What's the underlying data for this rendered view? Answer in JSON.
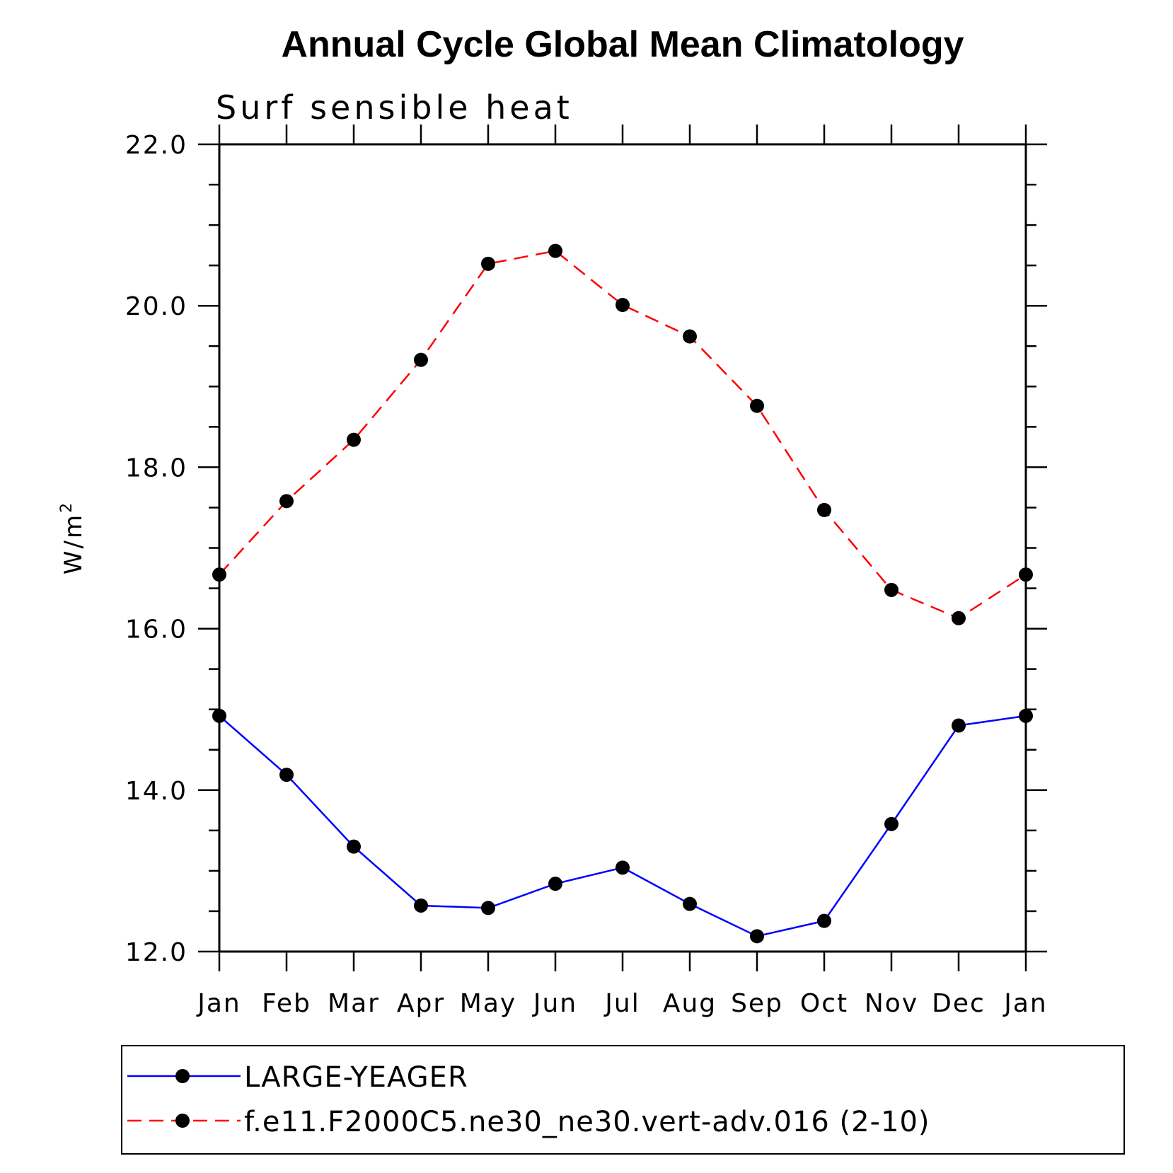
{
  "chart_data": {
    "type": "line",
    "title": "Annual Cycle Global Mean Climatology",
    "subtitle": "Surf sensible heat",
    "ylabel": "W/m",
    "ylabel_superscript": "2",
    "ylim": [
      12.0,
      22.0
    ],
    "yticks": [
      "12.0",
      "14.0",
      "16.0",
      "18.0",
      "20.0",
      "22.0"
    ],
    "categories": [
      "Jan",
      "Feb",
      "Mar",
      "Apr",
      "May",
      "Jun",
      "Jul",
      "Aug",
      "Sep",
      "Oct",
      "Nov",
      "Dec",
      "Jan"
    ],
    "grid": false,
    "legend_position": "bottom",
    "series": [
      {
        "name": "LARGE-YEAGER",
        "color": "#0000ff",
        "dash": "solid",
        "marker": "circle",
        "values": [
          14.92,
          14.19,
          13.3,
          12.57,
          12.54,
          12.84,
          13.04,
          12.59,
          12.19,
          12.38,
          13.58,
          14.8,
          14.92
        ]
      },
      {
        "name": "f.e11.F2000C5.ne30_ne30.vert-adv.016 (2-10)",
        "color": "#ff0000",
        "dash": "dashed",
        "marker": "circle",
        "values": [
          16.67,
          17.58,
          18.34,
          19.33,
          20.52,
          20.68,
          20.01,
          19.62,
          18.76,
          17.47,
          16.48,
          16.13,
          16.67
        ]
      }
    ]
  }
}
